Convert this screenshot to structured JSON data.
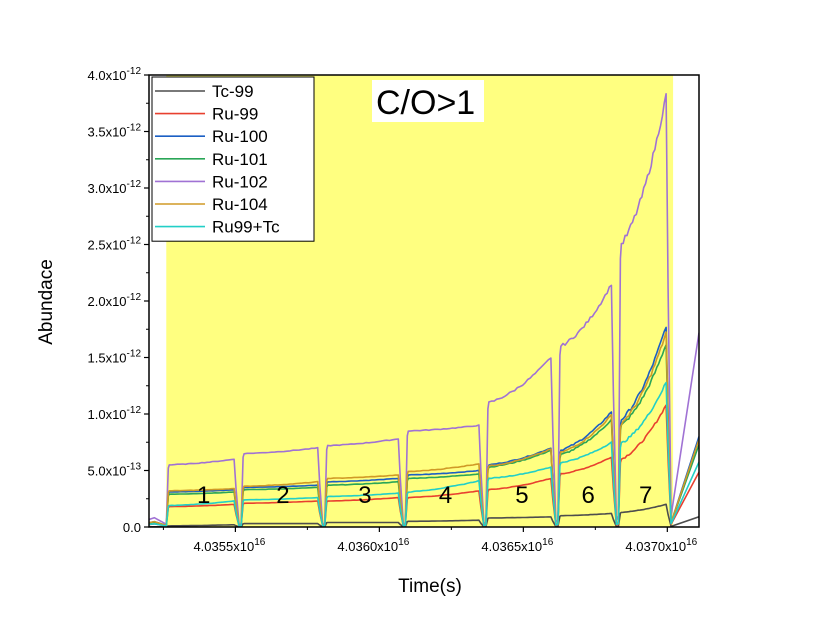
{
  "chart_data": {
    "type": "line",
    "title": "",
    "xlabel": "Time(s)",
    "ylabel": "Abundace",
    "xlim": [
      4.0352e+16,
      4.03711e+16
    ],
    "ylim": [
      0,
      4e-12
    ],
    "x_tick_values": [
      4.0355e+16,
      4.036e+16,
      4.0365e+16,
      4.037e+16
    ],
    "x_tick_labels": [
      {
        "mant": "4.0355x10",
        "exp": "16"
      },
      {
        "mant": "4.0360x10",
        "exp": "16"
      },
      {
        "mant": "4.0365x10",
        "exp": "16"
      },
      {
        "mant": "4.0370x10",
        "exp": "16"
      }
    ],
    "y_tick_values": [
      0,
      5e-13,
      1e-12,
      1.5e-12,
      2e-12,
      2.5e-12,
      3e-12,
      3.5e-12,
      4e-12
    ],
    "y_tick_labels": [
      {
        "mant": "0.0",
        "exp": ""
      },
      {
        "mant": "5.0x10",
        "exp": "-13"
      },
      {
        "mant": "1.0x10",
        "exp": "-12"
      },
      {
        "mant": "1.5x10",
        "exp": "-12"
      },
      {
        "mant": "2.0x10",
        "exp": "-12"
      },
      {
        "mant": "2.5x10",
        "exp": "-12"
      },
      {
        "mant": "3.0x10",
        "exp": "-12"
      },
      {
        "mant": "3.5x10",
        "exp": "-12"
      },
      {
        "mant": "4.0x10",
        "exp": "-12"
      }
    ],
    "background_color": "#ffff80",
    "annotation": "C/O>1",
    "pulse_labels": [
      "1",
      "2",
      "3",
      "4",
      "5",
      "6",
      "7"
    ],
    "pulse_starts": [
      4.03526e+16,
      4.03552e+16,
      4.03581e+16,
      4.03609e+16,
      4.03637e+16,
      4.03662e+16,
      4.03683e+16,
      4.03702e+16
    ],
    "legend_position": "top-left",
    "series": [
      {
        "name": "Tc-99",
        "color": "#4d4d4d",
        "start": [
          1e-14,
          3e-14,
          4e-14,
          5e-14,
          8e-14,
          1e-13,
          1.3e-13
        ],
        "end": [
          2e-14,
          3e-14,
          4e-14,
          6e-14,
          9e-14,
          1.2e-13,
          2e-13
        ]
      },
      {
        "name": "Ru-99",
        "color": "#e8402f",
        "start": [
          1.8e-13,
          2.1e-13,
          2.3e-13,
          2.6e-13,
          3.3e-13,
          4.7e-13,
          6e-13
        ],
        "end": [
          2e-13,
          2.3e-13,
          2.6e-13,
          3.2e-13,
          4.3e-13,
          6.2e-13,
          1.08e-12
        ]
      },
      {
        "name": "Ru-100",
        "color": "#1b5fc4",
        "start": [
          3.1e-13,
          3.5e-13,
          4e-13,
          4.6e-13,
          5.5e-13,
          6.8e-13,
          9.5e-13
        ],
        "end": [
          3.3e-13,
          3.7e-13,
          4.3e-13,
          5e-13,
          7e-13,
          1.02e-12,
          1.78e-12
        ]
      },
      {
        "name": "Ru-101",
        "color": "#2aa657",
        "start": [
          2.9e-13,
          3.3e-13,
          3.7e-13,
          4.3e-13,
          5.3e-13,
          6.4e-13,
          9e-13
        ],
        "end": [
          3.1e-13,
          3.5e-13,
          4e-13,
          4.7e-13,
          6.8e-13,
          9.5e-13,
          1.62e-12
        ]
      },
      {
        "name": "Ru-102",
        "color": "#a072d4",
        "start": [
          5.5e-13,
          6.5e-13,
          7.2e-13,
          8.5e-13,
          1.1e-12,
          1.6e-12,
          2.5e-12
        ],
        "end": [
          6e-13,
          7e-13,
          7.8e-13,
          9e-13,
          1.5e-12,
          2.15e-12,
          3.82e-12
        ]
      },
      {
        "name": "Ru-104",
        "color": "#d09a26",
        "start": [
          3.2e-13,
          3.6e-13,
          4.3e-13,
          4.9e-13,
          5.4e-13,
          6.6e-13,
          9.2e-13
        ],
        "end": [
          3.4e-13,
          4e-13,
          4.6e-13,
          5.6e-13,
          6.9e-13,
          9.9e-13,
          1.72e-12
        ]
      },
      {
        "name": "Ru99+Tc",
        "color": "#22cfc7",
        "start": [
          1.9e-13,
          2.4e-13,
          2.7e-13,
          3.1e-13,
          4.3e-13,
          5.7e-13,
          7.4e-13
        ],
        "end": [
          2.3e-13,
          2.6e-13,
          3e-13,
          4.1e-13,
          5.3e-13,
          7.5e-13,
          1.28e-12
        ]
      }
    ]
  }
}
